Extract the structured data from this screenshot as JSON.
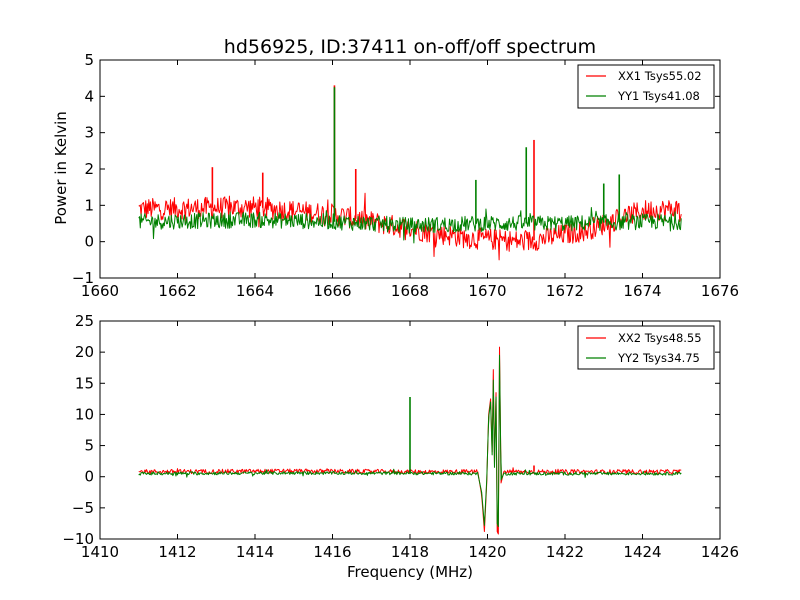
{
  "figure": {
    "title": "hd56925, ID:37411 on-off/off spectrum"
  },
  "chart_data": [
    {
      "type": "line",
      "title": "hd56925, ID:37411 on-off/off spectrum",
      "xlabel": "",
      "ylabel": "Power in Kelvin",
      "xlim": [
        1660,
        1676
      ],
      "ylim": [
        -1,
        5
      ],
      "xticks": [
        "1660",
        "1662",
        "1664",
        "1666",
        "1668",
        "1670",
        "1672",
        "1674",
        "1676"
      ],
      "yticks": [
        "−1",
        "0",
        "1",
        "2",
        "3",
        "4",
        "5"
      ],
      "legend_position": "top-right",
      "grid": false,
      "x_range_data": [
        1661.0,
        1675.0
      ],
      "series": [
        {
          "name": "XX1 Tsys55.02",
          "color": "#ff0000",
          "baseline": [
            [
              1661.0,
              0.9
            ],
            [
              1664.0,
              0.95
            ],
            [
              1666.0,
              0.75
            ],
            [
              1668.0,
              0.35
            ],
            [
              1669.5,
              0.1
            ],
            [
              1671.0,
              0.0
            ],
            [
              1672.5,
              0.3
            ],
            [
              1674.0,
              0.85
            ],
            [
              1675.0,
              0.9
            ]
          ],
          "noise_amp": 0.3,
          "spikes": [
            [
              1666.05,
              4.3
            ],
            [
              1666.6,
              2.0
            ],
            [
              1671.2,
              2.8
            ],
            [
              1662.9,
              2.05
            ],
            [
              1664.2,
              1.9
            ]
          ]
        },
        {
          "name": "YY1 Tsys41.08",
          "color": "#008000",
          "baseline": [
            [
              1661.0,
              0.55
            ],
            [
              1664.0,
              0.6
            ],
            [
              1666.0,
              0.55
            ],
            [
              1668.0,
              0.45
            ],
            [
              1670.0,
              0.5
            ],
            [
              1672.0,
              0.5
            ],
            [
              1674.0,
              0.55
            ],
            [
              1675.0,
              0.55
            ]
          ],
          "noise_amp": 0.22,
          "spikes": [
            [
              1666.05,
              4.25
            ],
            [
              1671.0,
              2.6
            ],
            [
              1669.7,
              1.7
            ],
            [
              1673.4,
              1.85
            ],
            [
              1673.0,
              1.6
            ]
          ]
        }
      ]
    },
    {
      "type": "line",
      "title": "",
      "xlabel": "Frequency (MHz)",
      "ylabel": "",
      "xlim": [
        1410,
        1426
      ],
      "ylim": [
        -10,
        25
      ],
      "xticks": [
        "1410",
        "1412",
        "1414",
        "1416",
        "1418",
        "1420",
        "1422",
        "1424",
        "1426"
      ],
      "yticks": [
        "−10",
        "−5",
        "0",
        "5",
        "10",
        "15",
        "20",
        "25"
      ],
      "legend_position": "top-right",
      "grid": false,
      "x_range_data": [
        1411.0,
        1425.0
      ],
      "series": [
        {
          "name": "XX2 Tsys48.55",
          "color": "#ff0000",
          "baseline": [
            [
              1411.0,
              0.8
            ],
            [
              1415.0,
              0.9
            ],
            [
              1418.0,
              0.8
            ],
            [
              1419.8,
              0.8
            ],
            [
              1420.6,
              0.8
            ],
            [
              1425.0,
              0.8
            ]
          ],
          "noise_amp": 0.35,
          "feature": [
            [
              1419.75,
              0.8
            ],
            [
              1419.85,
              -3.0
            ],
            [
              1419.92,
              -8.8
            ],
            [
              1419.98,
              -1.0
            ],
            [
              1420.03,
              10.0
            ],
            [
              1420.08,
              12.5
            ],
            [
              1420.12,
              4.0
            ],
            [
              1420.15,
              17.2
            ],
            [
              1420.18,
              2.0
            ],
            [
              1420.22,
              13.5
            ],
            [
              1420.25,
              -8.8
            ],
            [
              1420.28,
              -9.2
            ],
            [
              1420.31,
              20.8
            ],
            [
              1420.35,
              -1.0
            ],
            [
              1420.42,
              0.8
            ]
          ],
          "spikes": [
            [
              1421.2,
              1.8
            ]
          ]
        },
        {
          "name": "YY2 Tsys34.75",
          "color": "#008000",
          "baseline": [
            [
              1411.0,
              0.5
            ],
            [
              1415.0,
              0.6
            ],
            [
              1418.0,
              0.55
            ],
            [
              1419.8,
              0.5
            ],
            [
              1420.6,
              0.5
            ],
            [
              1425.0,
              0.5
            ]
          ],
          "noise_amp": 0.25,
          "feature": [
            [
              1419.75,
              0.5
            ],
            [
              1419.85,
              -2.5
            ],
            [
              1419.92,
              -7.8
            ],
            [
              1419.98,
              -0.5
            ],
            [
              1420.03,
              9.5
            ],
            [
              1420.08,
              12.0
            ],
            [
              1420.12,
              3.5
            ],
            [
              1420.15,
              15.5
            ],
            [
              1420.18,
              1.5
            ],
            [
              1420.22,
              12.8
            ],
            [
              1420.25,
              -7.5
            ],
            [
              1420.28,
              -8.0
            ],
            [
              1420.31,
              19.5
            ],
            [
              1420.35,
              -0.5
            ],
            [
              1420.42,
              0.5
            ]
          ],
          "spikes": [
            [
              1418.0,
              12.8
            ]
          ]
        }
      ]
    }
  ]
}
